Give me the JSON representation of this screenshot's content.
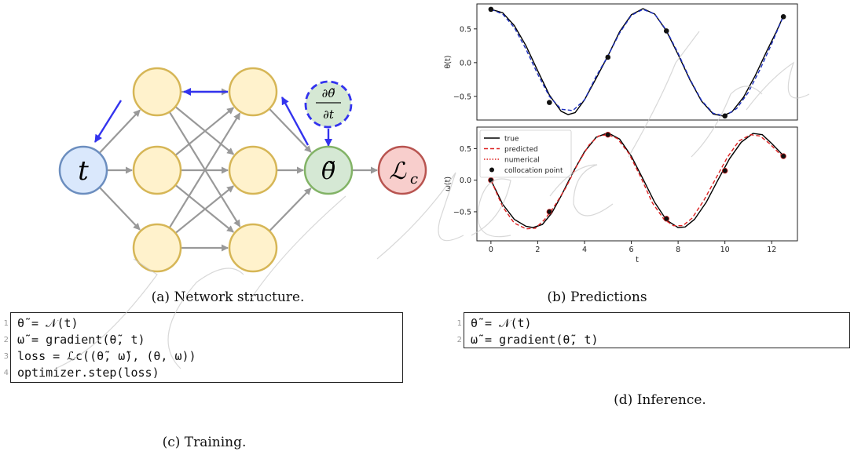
{
  "network": {
    "input_label": "t",
    "output_label": "θ̃",
    "loss_label": "ℒ",
    "loss_subscript": "c",
    "deriv_num": "∂θ̃",
    "deriv_den": "∂t"
  },
  "captions": {
    "a": "(a) Network structure.",
    "b": "(b) Predictions",
    "c": "(c) Training.",
    "d": "(d) Inference."
  },
  "training_listing": [
    {
      "num": "1",
      "code": "θ̃ = 𝒩(t)"
    },
    {
      "num": "2",
      "code": "ω̃ = gradient(θ̃, t)"
    },
    {
      "num": "3",
      "code": "loss = ℒc((θ̃, ω̃), (θ, ω))"
    },
    {
      "num": "4",
      "code": "optimizer.step(loss)"
    }
  ],
  "inference_listing": [
    {
      "num": "1",
      "code": "θ̃ = 𝒩(t)"
    },
    {
      "num": "2",
      "code": "ω̃ = gradient(θ̃, t)"
    }
  ],
  "watermark": "Just Accepted",
  "colors": {
    "input_fill": "#dae8fc",
    "input_stroke": "#6c8ebf",
    "hidden_fill": "#fff2cc",
    "hidden_stroke": "#d6b656",
    "output_fill": "#d5e8d4",
    "output_stroke": "#82b366",
    "loss_fill": "#f8cecc",
    "loss_stroke": "#b85450",
    "backprop": "#3333ee",
    "edge": "#999999"
  },
  "chart_data": [
    {
      "type": "line",
      "ylabel": "θ(t)",
      "xlim": [
        -0.6,
        13.1
      ],
      "ylim": [
        -0.85,
        0.87
      ],
      "yticks": [
        -0.5,
        0.0,
        0.5
      ],
      "ytick_labels": [
        "−0.5",
        "0.0",
        "0.5"
      ],
      "series": [
        {
          "role": "true",
          "color": "#000000",
          "style": "solid",
          "x": [
            0,
            0.5,
            1,
            1.5,
            2,
            2.5,
            3,
            3.3,
            3.6,
            4,
            4.5,
            5,
            5.5,
            6,
            6.5,
            7,
            7.5,
            8,
            8.5,
            9,
            9.5,
            9.9,
            10.3,
            10.8,
            11.3,
            11.8,
            12.2,
            12.5
          ],
          "y": [
            0.79,
            0.74,
            0.55,
            0.25,
            -0.12,
            -0.48,
            -0.72,
            -0.77,
            -0.74,
            -0.55,
            -0.23,
            0.1,
            0.46,
            0.71,
            0.8,
            0.72,
            0.47,
            0.12,
            -0.25,
            -0.57,
            -0.76,
            -0.79,
            -0.73,
            -0.51,
            -0.19,
            0.18,
            0.46,
            0.69
          ]
        },
        {
          "role": "predicted",
          "color": "#1c2fbf",
          "style": "dashed",
          "x": [
            0,
            0.5,
            1,
            1.5,
            2,
            2.5,
            3,
            3.5,
            4,
            4.5,
            5,
            5.5,
            6,
            6.5,
            7,
            7.5,
            8,
            8.5,
            9,
            9.5,
            10,
            10.5,
            11,
            11.5,
            12,
            12.5
          ],
          "y": [
            0.79,
            0.72,
            0.52,
            0.2,
            -0.17,
            -0.5,
            -0.69,
            -0.71,
            -0.55,
            -0.2,
            0.1,
            0.44,
            0.7,
            0.79,
            0.72,
            0.48,
            0.14,
            -0.24,
            -0.56,
            -0.75,
            -0.79,
            -0.68,
            -0.44,
            -0.1,
            0.28,
            0.69
          ]
        }
      ],
      "points": {
        "x": [
          0,
          2.5,
          5,
          7.5,
          10,
          12.5
        ],
        "y": [
          0.79,
          -0.59,
          0.08,
          0.47,
          -0.79,
          0.68
        ]
      }
    },
    {
      "type": "line",
      "ylabel": "ω(t)",
      "xlabel": "t",
      "xlim": [
        -0.6,
        13.1
      ],
      "ylim": [
        -0.96,
        0.84
      ],
      "xticks": [
        0,
        2,
        4,
        6,
        8,
        10,
        12
      ],
      "xtick_labels": [
        "0",
        "2",
        "4",
        "6",
        "8",
        "10",
        "12"
      ],
      "yticks": [
        -0.5,
        0.0,
        0.5
      ],
      "ytick_labels": [
        "−0.5",
        "0.0",
        "0.5"
      ],
      "legend": {
        "placement": "upper-left",
        "entries": [
          "true",
          "predicted",
          "numerical",
          "collocation point"
        ]
      },
      "series": [
        {
          "role": "true",
          "color": "#000000",
          "style": "solid",
          "x": [
            0,
            0.5,
            1,
            1.5,
            1.8,
            2.2,
            2.6,
            3,
            3.5,
            4,
            4.5,
            5,
            5.5,
            6,
            6.5,
            7,
            7.5,
            8,
            8.3,
            8.7,
            9.2,
            9.7,
            10.2,
            10.7,
            11.2,
            11.6,
            12,
            12.5
          ],
          "y": [
            0.0,
            -0.38,
            -0.62,
            -0.73,
            -0.75,
            -0.7,
            -0.52,
            -0.25,
            0.12,
            0.45,
            0.68,
            0.75,
            0.65,
            0.38,
            0.02,
            -0.35,
            -0.63,
            -0.75,
            -0.74,
            -0.62,
            -0.35,
            0.0,
            0.34,
            0.6,
            0.74,
            0.72,
            0.58,
            0.39
          ]
        },
        {
          "role": "predicted",
          "color": "#dd2222",
          "style": "dashed",
          "x": [
            0,
            0.5,
            1,
            1.5,
            1.9,
            2.3,
            2.7,
            3.2,
            3.7,
            4.2,
            4.6,
            5,
            5.4,
            5.9,
            6.4,
            6.9,
            7.4,
            7.8,
            8.2,
            8.6,
            9.1,
            9.6,
            10.1,
            10.6,
            11.1,
            11.5,
            11.9,
            12.5
          ],
          "y": [
            0.0,
            -0.42,
            -0.68,
            -0.77,
            -0.76,
            -0.62,
            -0.42,
            -0.12,
            0.25,
            0.56,
            0.7,
            0.72,
            0.66,
            0.42,
            0.05,
            -0.36,
            -0.62,
            -0.72,
            -0.72,
            -0.6,
            -0.32,
            0.02,
            0.36,
            0.62,
            0.72,
            0.7,
            0.58,
            0.36
          ]
        }
      ],
      "points": {
        "x": [
          0,
          2.5,
          5,
          7.5,
          10,
          12.5
        ],
        "y": [
          0.0,
          -0.5,
          0.72,
          -0.61,
          0.15,
          0.38
        ]
      }
    }
  ]
}
